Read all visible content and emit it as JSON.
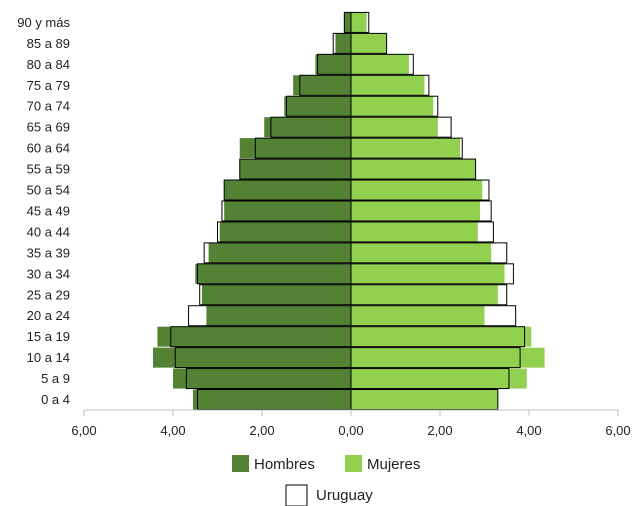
{
  "chart_data": {
    "type": "bar",
    "orientation": "horizontal",
    "subtype": "population-pyramid",
    "categories": [
      "0 a 4",
      "5 a 9",
      "10 a 14",
      "15 a 19",
      "20 a 24",
      "25 a 29",
      "30 a 34",
      "35 a 39",
      "40 a 44",
      "45 a 49",
      "50 a 54",
      "55 a 59",
      "60 a 64",
      "65 a 69",
      "70 a 74",
      "75 a 79",
      "80 a 84",
      "85 a 89",
      "90 y más"
    ],
    "series": [
      {
        "name": "Hombres",
        "color": "#548235",
        "side": "left",
        "values": [
          3.55,
          4.0,
          4.45,
          4.35,
          3.25,
          3.35,
          3.5,
          3.2,
          2.95,
          2.85,
          2.85,
          2.5,
          2.5,
          1.95,
          1.5,
          1.3,
          0.8,
          0.35,
          0.15
        ]
      },
      {
        "name": "Mujeres",
        "color": "#92d050",
        "side": "right",
        "values": [
          3.3,
          3.95,
          4.35,
          4.05,
          3.0,
          3.3,
          3.45,
          3.15,
          2.85,
          2.9,
          2.95,
          2.8,
          2.45,
          1.95,
          1.85,
          1.65,
          1.3,
          0.8,
          0.35
        ]
      },
      {
        "name": "Uruguay",
        "style": "outline",
        "color": "#000000",
        "left_values": [
          3.45,
          3.7,
          3.95,
          4.05,
          3.65,
          3.4,
          3.45,
          3.3,
          3.0,
          2.9,
          2.85,
          2.5,
          2.15,
          1.8,
          1.45,
          1.15,
          0.75,
          0.4,
          0.15
        ],
        "right_values": [
          3.3,
          3.55,
          3.8,
          3.9,
          3.7,
          3.5,
          3.65,
          3.5,
          3.2,
          3.15,
          3.1,
          2.8,
          2.5,
          2.25,
          1.95,
          1.75,
          1.4,
          0.8,
          0.4
        ]
      }
    ],
    "xlim": [
      -6,
      6
    ],
    "xticks": [
      -6,
      -4,
      -2,
      0,
      2,
      4,
      6
    ],
    "xtick_labels": [
      "6,00",
      "4,00",
      "2,00",
      "0,00",
      "2,00",
      "4,00",
      "6,00"
    ],
    "grid": false,
    "legend": {
      "placement": "bottom-center",
      "entries": [
        "Hombres",
        "Mujeres",
        "Uruguay"
      ]
    }
  }
}
